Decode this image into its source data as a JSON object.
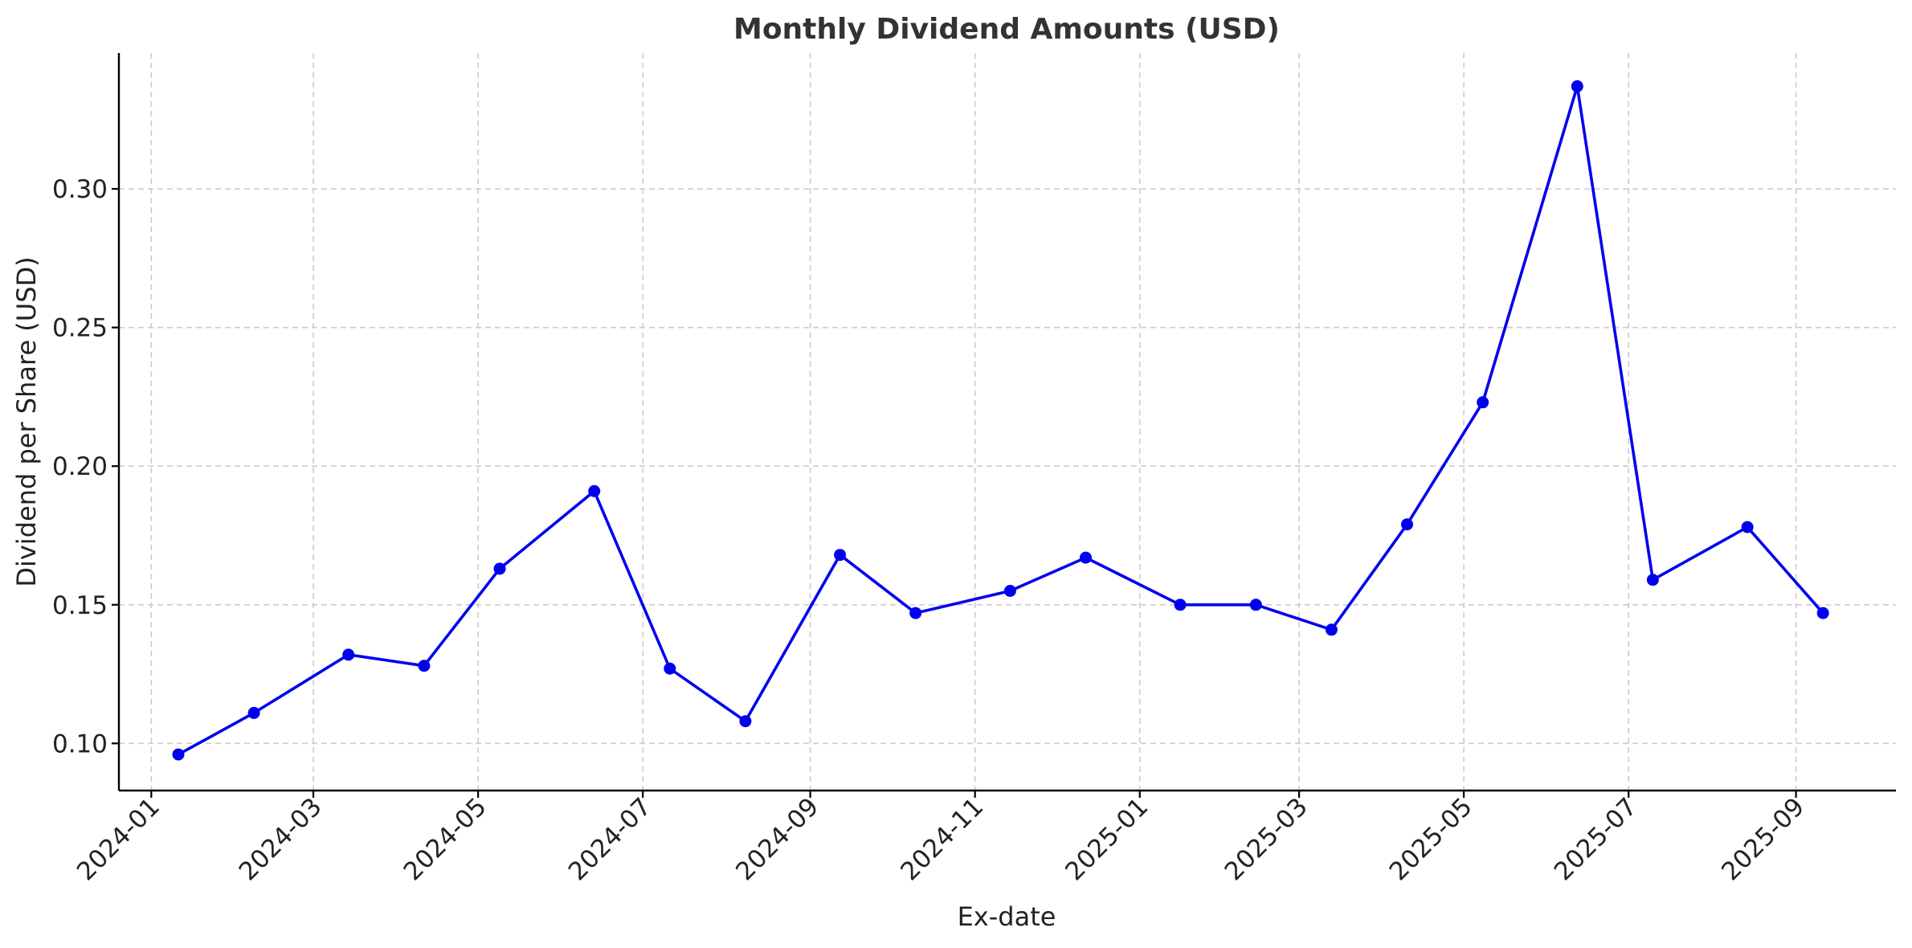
{
  "chart_data": {
    "type": "line",
    "title": "Monthly Dividend Amounts (USD)",
    "xlabel": "Ex-date",
    "ylabel": "Dividend per Share (USD)",
    "color": "#0000ee",
    "grid": true,
    "xlim": [
      "2023-12-20",
      "2025-10-08"
    ],
    "ylim": [
      0.083,
      0.349
    ],
    "x_ticks": [
      "2024-01",
      "2024-03",
      "2024-05",
      "2024-07",
      "2024-09",
      "2024-11",
      "2025-01",
      "2025-03",
      "2025-05",
      "2025-07",
      "2025-09"
    ],
    "y_ticks": [
      "0.10",
      "0.15",
      "0.20",
      "0.25",
      "0.30"
    ],
    "x": [
      "2024-01-11",
      "2024-02-08",
      "2024-03-14",
      "2024-04-11",
      "2024-05-09",
      "2024-06-13",
      "2024-07-11",
      "2024-08-08",
      "2024-09-12",
      "2024-10-10",
      "2024-11-14",
      "2024-12-12",
      "2025-01-16",
      "2025-02-13",
      "2025-03-13",
      "2025-04-10",
      "2025-05-08",
      "2025-06-12",
      "2025-07-10",
      "2025-08-14",
      "2025-09-11"
    ],
    "values": [
      0.096,
      0.111,
      0.132,
      0.128,
      0.163,
      0.191,
      0.127,
      0.108,
      0.168,
      0.147,
      0.155,
      0.167,
      0.15,
      0.15,
      0.141,
      0.179,
      0.223,
      0.337,
      0.159,
      0.178,
      0.147
    ]
  }
}
